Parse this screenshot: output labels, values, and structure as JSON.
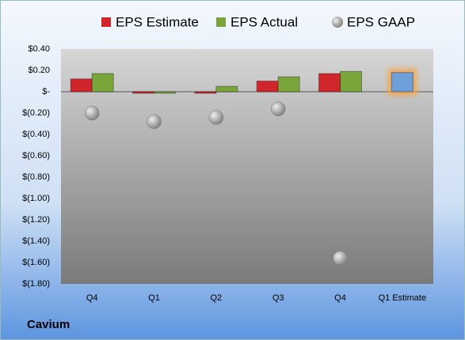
{
  "chart_data": {
    "type": "bar",
    "categories": [
      "Q4",
      "Q1",
      "Q2",
      "Q3",
      "Q4",
      "Q1 Estimate"
    ],
    "series": [
      {
        "name": "EPS Estimate",
        "color": "#d0262b",
        "colors": [
          "#d0262b",
          "#d0262b",
          "#d0262b",
          "#d0262b",
          "#d0262b",
          "#6f9fd8"
        ],
        "values": [
          0.12,
          -0.01,
          -0.01,
          0.1,
          0.17,
          0.18
        ]
      },
      {
        "name": "EPS Actual",
        "color": "#7aa53a",
        "values": [
          0.17,
          -0.01,
          0.05,
          0.14,
          0.19,
          null
        ]
      },
      {
        "name": "EPS GAAP",
        "type": "scatter",
        "color": "#a8a8a8",
        "values": [
          -0.2,
          -0.28,
          -0.24,
          -0.16,
          -1.56,
          null
        ]
      }
    ],
    "ylim": [
      -1.8,
      0.4
    ],
    "yticks": [
      {
        "value": 0.4,
        "label": "$0.40"
      },
      {
        "value": 0.2,
        "label": "$0.20"
      },
      {
        "value": 0,
        "label": "$-"
      },
      {
        "value": -0.2,
        "label": "$(0.20)"
      },
      {
        "value": -0.4,
        "label": "$(0.40)"
      },
      {
        "value": -0.6,
        "label": "$(0.60)"
      },
      {
        "value": -0.8,
        "label": "$(0.80)"
      },
      {
        "value": -1.0,
        "label": "$(1.00)"
      },
      {
        "value": -1.2,
        "label": "$(1.20)"
      },
      {
        "value": -1.4,
        "label": "$(1.40)"
      },
      {
        "value": -1.6,
        "label": "$(1.60)"
      },
      {
        "value": -1.8,
        "label": "$(1.80)"
      }
    ],
    "grid": false,
    "footer": "Cavium"
  }
}
